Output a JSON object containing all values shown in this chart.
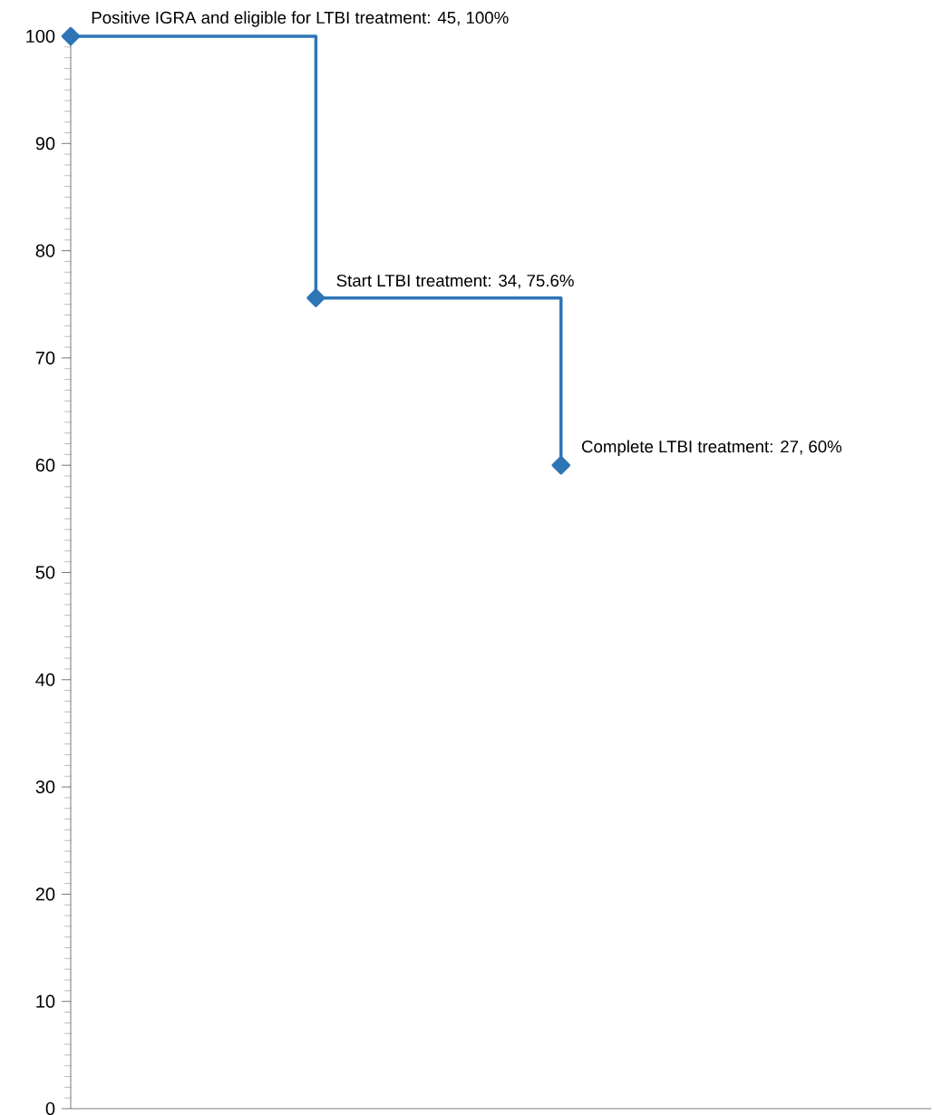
{
  "chart_data": {
    "type": "step",
    "categories": [
      null,
      null,
      null
    ],
    "series": [
      {
        "color": "#2e75b6",
        "values": [
          100,
          75.6,
          60
        ],
        "value_labels": [
          "Positive IGRA and eligible for LTBI treatment: 45, 100%",
          "Start LTBI treatment: 34, 75.6%",
          "Complete LTBI treatment: 27, 60%"
        ]
      }
    ],
    "ylim": [
      0,
      100
    ],
    "yticks": [
      0,
      10,
      20,
      30,
      40,
      50,
      60,
      70,
      80,
      90,
      100
    ],
    "marker": "diamond",
    "line_style": "solid",
    "grid": false
  }
}
